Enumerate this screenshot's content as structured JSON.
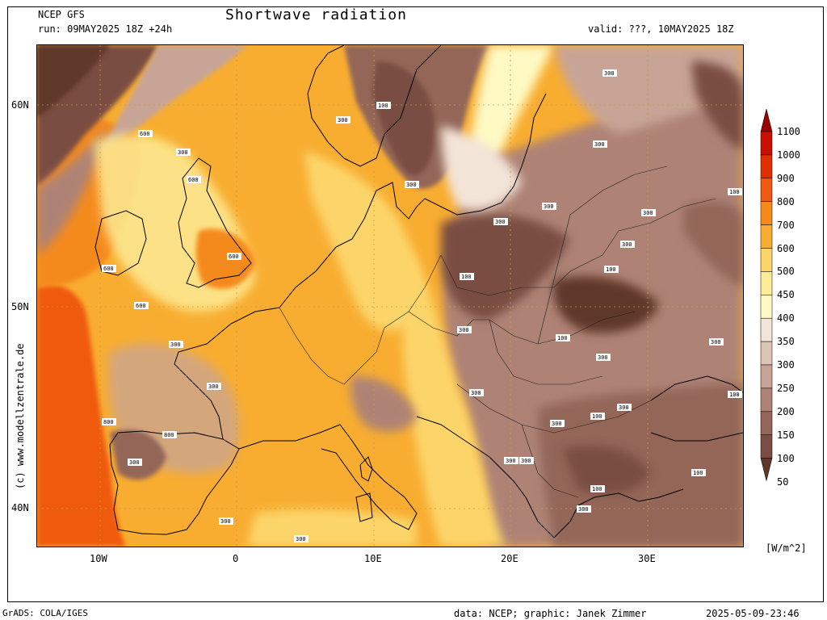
{
  "header": {
    "model": "NCEP GFS",
    "run": "run: 09MAY2025 18Z +24h",
    "title": "Shortwave radiation",
    "valid": "valid: ???, 10MAY2025 18Z"
  },
  "credit_vertical": "(c) www.modellzentrale.de",
  "axes": {
    "lat_labels": [
      "60N",
      "50N",
      "40N"
    ],
    "lon_labels": [
      "10W",
      "0",
      "10E",
      "20E",
      "30E"
    ]
  },
  "colorbar": {
    "levels": [
      "1100",
      "1000",
      "900",
      "800",
      "700",
      "600",
      "500",
      "450",
      "400",
      "350",
      "300",
      "250",
      "200",
      "150",
      "100",
      "50"
    ],
    "colors": [
      "#9b0000",
      "#c81000",
      "#e03000",
      "#f05a10",
      "#f58a1a",
      "#f8ad30",
      "#fcd56a",
      "#fdeb95",
      "#fff9c4",
      "#f3e4d8",
      "#dcc4b7",
      "#c8a496",
      "#ae8376",
      "#936659",
      "#7a4e42",
      "#60372b"
    ],
    "unit": "[W/m^2]"
  },
  "contour_labels": [
    "100",
    "300",
    "600",
    "800"
  ],
  "footer": {
    "left": "GrADS: COLA/IGES",
    "center": "data: NCEP; graphic: Janek Zimmer",
    "right": "2025-05-09-23:46"
  }
}
